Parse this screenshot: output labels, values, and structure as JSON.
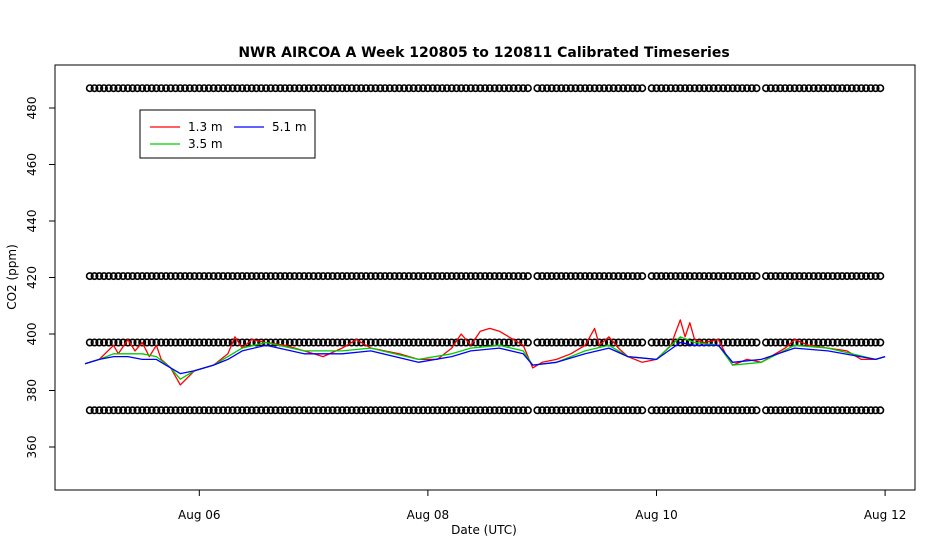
{
  "chart_data": {
    "type": "line",
    "title": "NWR AIRCOA A  Week 120805 to 120811  Calibrated Timeseries",
    "xlabel": "Date (UTC)",
    "ylabel": "CO2 (ppm)",
    "x_unit": "days",
    "xlim": [
      2012.0805,
      2012.0812
    ],
    "x_day_range": [
      "2012-08-05",
      "2012-08-12"
    ],
    "x_ticks": [
      "Aug 06",
      "Aug 08",
      "Aug 10",
      "Aug 12"
    ],
    "y_ticks": [
      360,
      380,
      400,
      420,
      440,
      460,
      480
    ],
    "ylim": [
      350,
      490
    ],
    "grid": false,
    "legend_position": "top-left",
    "series": [
      {
        "name": "1.3 m",
        "color": "#ff0000",
        "points": [
          [
            "2012-08-05 00:00",
            389.5
          ],
          [
            "2012-08-05 03:00",
            391
          ],
          [
            "2012-08-05 06:00",
            396
          ],
          [
            "2012-08-05 07:00",
            393
          ],
          [
            "2012-08-05 09:00",
            398
          ],
          [
            "2012-08-05 10:30",
            394
          ],
          [
            "2012-08-05 12:00",
            397
          ],
          [
            "2012-08-05 13:30",
            392
          ],
          [
            "2012-08-05 15:00",
            396
          ],
          [
            "2012-08-05 16:00",
            391
          ],
          [
            "2012-08-05 18:00",
            388
          ],
          [
            "2012-08-05 20:00",
            382
          ],
          [
            "2012-08-05 23:00",
            387
          ],
          [
            "2012-08-06 03:00",
            389
          ],
          [
            "2012-08-06 06:00",
            393
          ],
          [
            "2012-08-06 07:30",
            399
          ],
          [
            "2012-08-06 09:00",
            395
          ],
          [
            "2012-08-06 11:00",
            398
          ],
          [
            "2012-08-06 14:00",
            397
          ],
          [
            "2012-08-06 18:00",
            396
          ],
          [
            "2012-08-06 22:00",
            394
          ],
          [
            "2012-08-07 02:00",
            392
          ],
          [
            "2012-08-07 06:00",
            395
          ],
          [
            "2012-08-07 09:00",
            398
          ],
          [
            "2012-08-07 12:00",
            395
          ],
          [
            "2012-08-07 18:00",
            393
          ],
          [
            "2012-08-07 22:00",
            391
          ],
          [
            "2012-08-08 02:00",
            391
          ],
          [
            "2012-08-08 05:00",
            395
          ],
          [
            "2012-08-08 07:00",
            400
          ],
          [
            "2012-08-08 09:00",
            396
          ],
          [
            "2012-08-08 11:00",
            401
          ],
          [
            "2012-08-08 13:00",
            402
          ],
          [
            "2012-08-08 15:00",
            401
          ],
          [
            "2012-08-08 20:00",
            396
          ],
          [
            "2012-08-08 22:00",
            388
          ],
          [
            "2012-08-09 00:00",
            390
          ],
          [
            "2012-08-09 03:00",
            391
          ],
          [
            "2012-08-09 06:00",
            393
          ],
          [
            "2012-08-09 09:00",
            396
          ],
          [
            "2012-08-09 11:00",
            402
          ],
          [
            "2012-08-09 12:00",
            396
          ],
          [
            "2012-08-09 14:00",
            399
          ],
          [
            "2012-08-09 16:00",
            395
          ],
          [
            "2012-08-09 18:00",
            392
          ],
          [
            "2012-08-09 21:00",
            390
          ],
          [
            "2012-08-10 00:00",
            391
          ],
          [
            "2012-08-10 03:00",
            396
          ],
          [
            "2012-08-10 05:00",
            405
          ],
          [
            "2012-08-10 06:00",
            399
          ],
          [
            "2012-08-10 07:00",
            404
          ],
          [
            "2012-08-10 08:00",
            398
          ],
          [
            "2012-08-10 10:00",
            397
          ],
          [
            "2012-08-10 13:00",
            398
          ],
          [
            "2012-08-10 14:30",
            393
          ],
          [
            "2012-08-10 16:00",
            389
          ],
          [
            "2012-08-10 19:00",
            391
          ],
          [
            "2012-08-10 22:00",
            390
          ],
          [
            "2012-08-11 00:00",
            392
          ],
          [
            "2012-08-11 03:00",
            395
          ],
          [
            "2012-08-11 05:00",
            398
          ],
          [
            "2012-08-11 08:00",
            396
          ],
          [
            "2012-08-11 12:00",
            395
          ],
          [
            "2012-08-11 16:00",
            394
          ],
          [
            "2012-08-11 19:00",
            391
          ],
          [
            "2012-08-11 22:00",
            391
          ],
          [
            "2012-08-12 00:00",
            392
          ]
        ]
      },
      {
        "name": "3.5 m",
        "color": "#00cd00",
        "points": [
          [
            "2012-08-05 00:00",
            389.5
          ],
          [
            "2012-08-05 03:00",
            391
          ],
          [
            "2012-08-05 06:00",
            393
          ],
          [
            "2012-08-05 09:00",
            393
          ],
          [
            "2012-08-05 12:00",
            393
          ],
          [
            "2012-08-05 15:00",
            392
          ],
          [
            "2012-08-05 18:00",
            388
          ],
          [
            "2012-08-05 20:00",
            384
          ],
          [
            "2012-08-05 23:00",
            387
          ],
          [
            "2012-08-06 03:00",
            389
          ],
          [
            "2012-08-06 06:00",
            392
          ],
          [
            "2012-08-06 09:00",
            395
          ],
          [
            "2012-08-06 14:00",
            397
          ],
          [
            "2012-08-06 22:00",
            394
          ],
          [
            "2012-08-07 06:00",
            394
          ],
          [
            "2012-08-07 12:00",
            395
          ],
          [
            "2012-08-07 22:00",
            391
          ],
          [
            "2012-08-08 05:00",
            393
          ],
          [
            "2012-08-08 09:00",
            395
          ],
          [
            "2012-08-08 15:00",
            396
          ],
          [
            "2012-08-08 20:00",
            394
          ],
          [
            "2012-08-08 22:00",
            389
          ],
          [
            "2012-08-09 03:00",
            390
          ],
          [
            "2012-08-09 09:00",
            394
          ],
          [
            "2012-08-09 14:00",
            396
          ],
          [
            "2012-08-09 18:00",
            392
          ],
          [
            "2012-08-10 00:00",
            391
          ],
          [
            "2012-08-10 05:00",
            399
          ],
          [
            "2012-08-10 08:00",
            397
          ],
          [
            "2012-08-10 13:00",
            396
          ],
          [
            "2012-08-10 16:00",
            389
          ],
          [
            "2012-08-10 22:00",
            390
          ],
          [
            "2012-08-11 05:00",
            396
          ],
          [
            "2012-08-11 12:00",
            395
          ],
          [
            "2012-08-11 22:00",
            391
          ],
          [
            "2012-08-12 00:00",
            392
          ]
        ]
      },
      {
        "name": "5.1 m",
        "color": "#0000ff",
        "points": [
          [
            "2012-08-05 00:00",
            389.5
          ],
          [
            "2012-08-05 03:00",
            391
          ],
          [
            "2012-08-05 06:00",
            392
          ],
          [
            "2012-08-05 09:00",
            392
          ],
          [
            "2012-08-05 12:00",
            391
          ],
          [
            "2012-08-05 15:00",
            391
          ],
          [
            "2012-08-05 18:00",
            388
          ],
          [
            "2012-08-05 20:00",
            386
          ],
          [
            "2012-08-05 23:00",
            387
          ],
          [
            "2012-08-06 03:00",
            389
          ],
          [
            "2012-08-06 06:00",
            391
          ],
          [
            "2012-08-06 09:00",
            394
          ],
          [
            "2012-08-06 14:00",
            396
          ],
          [
            "2012-08-06 22:00",
            393
          ],
          [
            "2012-08-07 06:00",
            393
          ],
          [
            "2012-08-07 12:00",
            394
          ],
          [
            "2012-08-07 22:00",
            390
          ],
          [
            "2012-08-08 05:00",
            392
          ],
          [
            "2012-08-08 09:00",
            394
          ],
          [
            "2012-08-08 15:00",
            395
          ],
          [
            "2012-08-08 20:00",
            393
          ],
          [
            "2012-08-08 22:00",
            389
          ],
          [
            "2012-08-09 03:00",
            390
          ],
          [
            "2012-08-09 09:00",
            393
          ],
          [
            "2012-08-09 14:00",
            395
          ],
          [
            "2012-08-09 18:00",
            392
          ],
          [
            "2012-08-10 00:00",
            391
          ],
          [
            "2012-08-10 05:00",
            397
          ],
          [
            "2012-08-10 08:00",
            396
          ],
          [
            "2012-08-10 13:00",
            396
          ],
          [
            "2012-08-10 16:00",
            390
          ],
          [
            "2012-08-10 22:00",
            391
          ],
          [
            "2012-08-11 05:00",
            395
          ],
          [
            "2012-08-11 12:00",
            394
          ],
          [
            "2012-08-11 22:00",
            391
          ],
          [
            "2012-08-12 00:00",
            392
          ]
        ]
      }
    ],
    "calibration_markers": {
      "glyph": "o",
      "levels": [
        373,
        397,
        420.5,
        487
      ],
      "segments": [
        [
          "2012-08-05 01:00",
          "2012-08-08 21:00"
        ],
        [
          "2012-08-08 23:00",
          "2012-08-09 21:00"
        ],
        [
          "2012-08-09 23:00",
          "2012-08-10 21:00"
        ],
        [
          "2012-08-10 23:00",
          "2012-08-11 23:59"
        ]
      ]
    }
  }
}
